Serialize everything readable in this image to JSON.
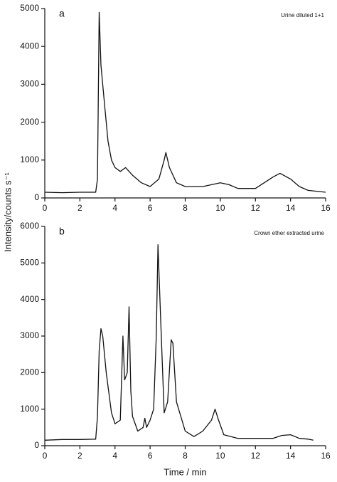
{
  "chart_data": [
    {
      "type": "line",
      "panel_label": "a",
      "annotation": "Urine diluted 1+1",
      "ylabel": "Intensity/counts s⁻¹",
      "color": "#111111",
      "x": [
        0,
        1,
        2,
        2.9,
        3.0,
        3.1,
        3.2,
        3.4,
        3.6,
        3.8,
        4.0,
        4.3,
        4.6,
        5.0,
        5.5,
        6.0,
        6.5,
        6.8,
        6.9,
        7.1,
        7.5,
        8,
        9,
        10,
        10.5,
        11,
        12,
        12.5,
        13,
        13.4,
        14,
        14.5,
        15,
        16
      ],
      "values": [
        150,
        140,
        150,
        150,
        500,
        4900,
        3500,
        2500,
        1500,
        1000,
        800,
        700,
        800,
        600,
        400,
        300,
        500,
        1000,
        1200,
        800,
        400,
        300,
        300,
        400,
        350,
        250,
        250,
        400,
        550,
        650,
        500,
        300,
        200,
        150
      ],
      "xlim": [
        0,
        16
      ],
      "xticks": [
        0,
        2,
        4,
        6,
        8,
        10,
        12,
        14,
        16
      ],
      "ylim": [
        0,
        5000
      ],
      "yticks": [
        0,
        1000,
        2000,
        3000,
        4000,
        5000
      ]
    },
    {
      "type": "line",
      "panel_label": "b",
      "annotation": "Crown ether extracted urine",
      "xlabel": "Time / min",
      "color": "#111111",
      "x": [
        0,
        1,
        2,
        2.9,
        3.0,
        3.1,
        3.2,
        3.3,
        3.5,
        3.8,
        4.0,
        4.3,
        4.45,
        4.55,
        4.7,
        4.8,
        4.9,
        5.0,
        5.3,
        5.6,
        5.7,
        5.8,
        6.0,
        6.2,
        6.35,
        6.45,
        6.6,
        6.8,
        7.0,
        7.2,
        7.3,
        7.5,
        8,
        8.5,
        9,
        9.5,
        9.7,
        9.9,
        10.2,
        11,
        12,
        13,
        13.5,
        14,
        14.5,
        15,
        15.3
      ],
      "values": [
        150,
        170,
        170,
        180,
        800,
        2600,
        3200,
        3000,
        2000,
        900,
        600,
        700,
        3000,
        1800,
        2000,
        3800,
        1500,
        800,
        400,
        500,
        750,
        500,
        700,
        1000,
        3000,
        5500,
        3500,
        900,
        1200,
        2900,
        2800,
        1200,
        400,
        250,
        400,
        700,
        1000,
        700,
        300,
        200,
        200,
        200,
        280,
        300,
        200,
        180,
        150
      ],
      "xlim": [
        0,
        16
      ],
      "xticks": [
        0,
        2,
        4,
        6,
        8,
        10,
        12,
        14,
        16
      ],
      "ylim": [
        0,
        6000
      ],
      "yticks": [
        0,
        1000,
        2000,
        3000,
        4000,
        5000,
        6000
      ]
    }
  ]
}
